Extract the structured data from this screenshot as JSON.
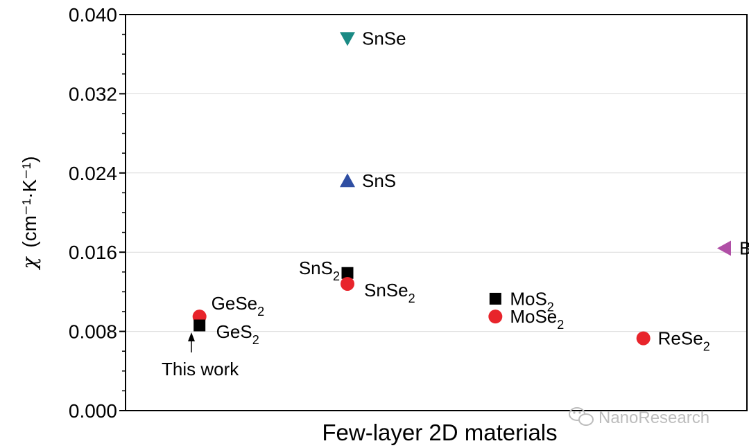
{
  "chart_data": {
    "type": "scatter",
    "title": "",
    "xlabel": "Few-layer 2D materials",
    "ylabel": {
      "symbol": "χ",
      "units": "(cm⁻¹·K⁻¹)"
    },
    "ylim": [
      0,
      0.04
    ],
    "yticks": [
      "0.000",
      "0.008",
      "0.016",
      "0.024",
      "0.032",
      "0.040"
    ],
    "y_minor_step": 0.002,
    "grid": "y-major",
    "xlim": [
      0.5,
      4.7
    ],
    "points": [
      {
        "name": "GeSe2",
        "label": "GeSe",
        "sub": "2",
        "x": 1,
        "y": 0.0095,
        "marker": "circle",
        "color": "#e8242b",
        "label_pos": "upper-right"
      },
      {
        "name": "GeS2",
        "label": "GeS",
        "sub": "2",
        "x": 1,
        "y": 0.0086,
        "marker": "square",
        "color": "#000000",
        "label_pos": "lower-right"
      },
      {
        "name": "SnSe",
        "label": "SnSe",
        "sub": "",
        "x": 2,
        "y": 0.0376,
        "marker": "triangle-down",
        "color": "#1a8a84",
        "label_pos": "right"
      },
      {
        "name": "SnS",
        "label": "SnS",
        "sub": "",
        "x": 2,
        "y": 0.0232,
        "marker": "triangle-up",
        "color": "#2f4ea2",
        "label_pos": "right"
      },
      {
        "name": "SnS2",
        "label": "SnS",
        "sub": "2",
        "x": 2,
        "y": 0.0139,
        "marker": "square",
        "color": "#000000",
        "label_pos": "left"
      },
      {
        "name": "SnSe2",
        "label": "SnSe",
        "sub": "2",
        "x": 2,
        "y": 0.0128,
        "marker": "circle",
        "color": "#e8242b",
        "label_pos": "lower-right"
      },
      {
        "name": "MoS2",
        "label": "MoS",
        "sub": "2",
        "x": 3,
        "y": 0.0113,
        "marker": "square",
        "color": "#000000",
        "label_pos": "right"
      },
      {
        "name": "MoSe2",
        "label": "MoSe",
        "sub": "2",
        "x": 3,
        "y": 0.0095,
        "marker": "circle",
        "color": "#e8242b",
        "label_pos": "right"
      },
      {
        "name": "ReSe2",
        "label": "ReSe",
        "sub": "2",
        "x": 4,
        "y": 0.0073,
        "marker": "circle",
        "color": "#e8242b",
        "label_pos": "right"
      },
      {
        "name": "BP",
        "label": "BP",
        "sub": "",
        "x": 4.55,
        "y": 0.0164,
        "marker": "triangle-left",
        "color": "#b04fa6",
        "label_pos": "right"
      }
    ],
    "annotations": [
      {
        "text": "This work",
        "x": 1,
        "y": 0.0086,
        "type": "arrow-label"
      }
    ]
  },
  "watermark": {
    "text": "NanoResearch",
    "icon": "wechat-icon"
  }
}
